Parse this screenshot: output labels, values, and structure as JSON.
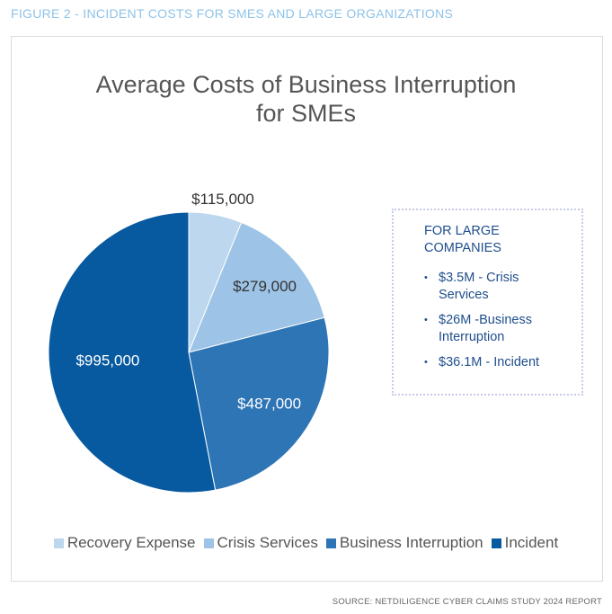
{
  "figure_label": "FIGURE 2 - INCIDENT COSTS FOR SMES AND LARGE ORGANIZATIONS",
  "source": "SOURCE: NETDILIGENCE CYBER CLAIMS STUDY 2024 REPORT",
  "callout": {
    "title": "FOR LARGE COMPANIES",
    "items": [
      "$3.5M - Crisis Services",
      "$26M -Business Interruption",
      "$36.1M - Incident"
    ]
  },
  "chart_data": {
    "type": "pie",
    "title_lines": [
      "Average Costs of Business Interruption",
      "for SMEs"
    ],
    "legend_position": "bottom",
    "slices": [
      {
        "name": "Recovery Expense",
        "value": 115000,
        "label": "$115,000",
        "color": "#bdd7ee"
      },
      {
        "name": "Crisis Services",
        "value": 279000,
        "label": "$279,000",
        "color": "#9dc3e6"
      },
      {
        "name": "Business Interruption",
        "value": 487000,
        "label": "$487,000",
        "color": "#2e75b6"
      },
      {
        "name": "Incident",
        "value": 995000,
        "label": "$995,000",
        "color": "#075aa0"
      }
    ]
  }
}
